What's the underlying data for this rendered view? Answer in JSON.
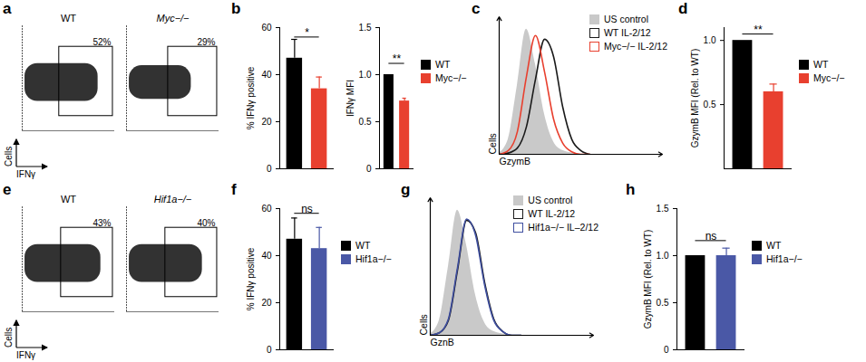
{
  "chart_data": [
    {
      "type": "flow",
      "title": "a",
      "subtitle": "WT",
      "xlabel": "IFNγ",
      "ylabel": "Cells",
      "xlim": [
        0,
        100
      ],
      "ylim": [
        0,
        100
      ],
      "tick_labels": false,
      "cloud": {
        "x": [
          3,
          82
        ],
        "y": [
          28,
          64
        ]
      },
      "gate": {
        "x": [
          40,
          98
        ],
        "y": [
          14,
          80
        ]
      },
      "values": [
        52
      ],
      "value_labels": [
        "52%"
      ]
    },
    {
      "type": "flow",
      "subtitle": "Myc−/−",
      "xlim": [
        0,
        100
      ],
      "ylim": [
        0,
        100
      ],
      "tick_labels": false,
      "cloud": {
        "x": [
          3,
          70
        ],
        "y": [
          30,
          62
        ]
      },
      "gate": {
        "x": [
          45,
          98
        ],
        "y": [
          14,
          80
        ]
      },
      "values": [
        29
      ],
      "value_labels": [
        "29%"
      ]
    },
    {
      "type": "bar",
      "title": "b",
      "ylabel": "% IFNγ positive",
      "categories": [
        "WT",
        "Myc−/−"
      ],
      "values": [
        47,
        34
      ],
      "errors": [
        8,
        5
      ],
      "colors": [
        "#000000",
        "#e8402f"
      ],
      "ylim": [
        0,
        60
      ],
      "yticks": [
        0,
        20,
        40,
        60
      ],
      "tick_labels": "y",
      "annotations": [
        {
          "text": "*",
          "y": 56
        }
      ]
    },
    {
      "type": "bar",
      "ylabel": "IFNγ MFI",
      "categories": [
        "WT",
        "Myc−/−"
      ],
      "values": [
        1.0,
        0.72
      ],
      "errors": [
        0,
        0.03
      ],
      "colors": [
        "#000000",
        "#e8402f"
      ],
      "ylim": [
        0,
        1.5
      ],
      "yticks": [
        0,
        0.5,
        {
          "value": 1,
          "label": "1.0"
        },
        1.5
      ],
      "tick_labels": "y",
      "annotations": [
        {
          "text": "**",
          "y": 1.12
        }
      ],
      "legend": "right"
    },
    {
      "type": "line",
      "title": "c",
      "xlabel": "GzymB",
      "ylabel": "Cells",
      "x": [
        0,
        10,
        20,
        30,
        40,
        50,
        60,
        70,
        80,
        90,
        100
      ],
      "xlim": [
        0,
        180
      ],
      "ylim": [
        0,
        110
      ],
      "tick_labels": false,
      "legend": "top right",
      "series": [
        {
          "name": "US control",
          "type": "area",
          "color": "#c9c9c9",
          "values": [
            1,
            12,
            55,
            100,
            72,
            32,
            10,
            3,
            1,
            0,
            0
          ]
        },
        {
          "name": "WT IL-2/12",
          "type": "line",
          "color": "#1a1a1a",
          "values": [
            0,
            1,
            5,
            22,
            60,
            92,
            78,
            38,
            12,
            3,
            0
          ]
        },
        {
          "name": "Myc−/− IL-2/12",
          "type": "line",
          "color": "#e8402f",
          "values": [
            0,
            3,
            18,
            62,
            95,
            66,
            28,
            9,
            2,
            0,
            0
          ]
        }
      ]
    },
    {
      "type": "bar",
      "title": "d",
      "ylabel": "GzymB MFI (Rel. to WT)",
      "categories": [
        "WT",
        "Myc−/−"
      ],
      "values": [
        1.0,
        0.6
      ],
      "errors": [
        0,
        0.06
      ],
      "colors": [
        "#000000",
        "#e8402f"
      ],
      "ylim": [
        0,
        1.1
      ],
      "yticks": [
        0.5,
        {
          "value": 1,
          "label": "1.0"
        }
      ],
      "tick_labels": "y",
      "annotations": [
        {
          "text": "**",
          "y": 1.05
        }
      ],
      "legend": "right"
    },
    {
      "type": "flow",
      "title": "e",
      "subtitle": "WT",
      "xlabel": "IFNγ",
      "ylabel": "Cells",
      "xlim": [
        0,
        100
      ],
      "ylim": [
        0,
        100
      ],
      "tick_labels": false,
      "cloud": {
        "x": [
          3,
          85
        ],
        "y": [
          28,
          64
        ]
      },
      "gate": {
        "x": [
          42,
          98
        ],
        "y": [
          14,
          80
        ]
      },
      "values": [
        43
      ],
      "value_labels": [
        "43%"
      ]
    },
    {
      "type": "flow",
      "subtitle": "Hif1a−/−",
      "xlim": [
        0,
        100
      ],
      "ylim": [
        0,
        100
      ],
      "tick_labels": false,
      "cloud": {
        "x": [
          3,
          82
        ],
        "y": [
          28,
          64
        ]
      },
      "gate": {
        "x": [
          42,
          98
        ],
        "y": [
          14,
          80
        ]
      },
      "values": [
        40
      ],
      "value_labels": [
        "40%"
      ]
    },
    {
      "type": "bar",
      "title": "f",
      "ylabel": "% IFNγ positive",
      "categories": [
        "WT",
        "Hif1a−/−"
      ],
      "values": [
        47,
        43
      ],
      "errors": [
        9,
        9
      ],
      "colors": [
        "#000000",
        "#4a58a6"
      ],
      "ylim": [
        0,
        60
      ],
      "yticks": [
        0,
        20,
        40,
        60
      ],
      "tick_labels": "y",
      "annotations": [
        {
          "text": "ns",
          "y": 58
        }
      ],
      "legend": "right"
    },
    {
      "type": "line",
      "title": "g",
      "xlabel": "GznB",
      "ylabel": "Cells",
      "x": [
        0,
        10,
        20,
        30,
        40,
        50,
        60,
        70,
        80,
        90,
        100
      ],
      "xlim": [
        0,
        180
      ],
      "ylim": [
        0,
        110
      ],
      "tick_labels": false,
      "legend": "top right",
      "series": [
        {
          "name": "US control",
          "type": "area",
          "color": "#c9c9c9",
          "values": [
            1,
            12,
            55,
            100,
            72,
            32,
            10,
            3,
            1,
            0,
            0
          ]
        },
        {
          "name": "WT IL-2/12",
          "type": "line",
          "color": "#1a1a1a",
          "values": [
            0,
            2,
            12,
            52,
            92,
            82,
            42,
            13,
            3,
            0,
            0
          ]
        },
        {
          "name": "Hif1a−/− IL–2/12",
          "type": "line",
          "color": "#3f4fa0",
          "values": [
            0,
            2,
            13,
            54,
            93,
            80,
            40,
            12,
            3,
            0,
            0
          ]
        }
      ]
    },
    {
      "type": "bar",
      "title": "h",
      "ylabel": "GzymB MFI (Rel. to WT)",
      "categories": [
        "WT",
        "Hif1a−/−"
      ],
      "values": [
        1.0,
        1.0
      ],
      "errors": [
        0,
        0.08
      ],
      "colors": [
        "#000000",
        "#4a58a6"
      ],
      "ylim": [
        0,
        1.5
      ],
      "yticks": [
        0,
        0.5,
        {
          "value": 1,
          "label": "1.0"
        },
        1.5
      ],
      "tick_labels": "y",
      "annotations": [
        {
          "text": "ns",
          "y": 1.16
        }
      ],
      "legend": "right"
    }
  ]
}
